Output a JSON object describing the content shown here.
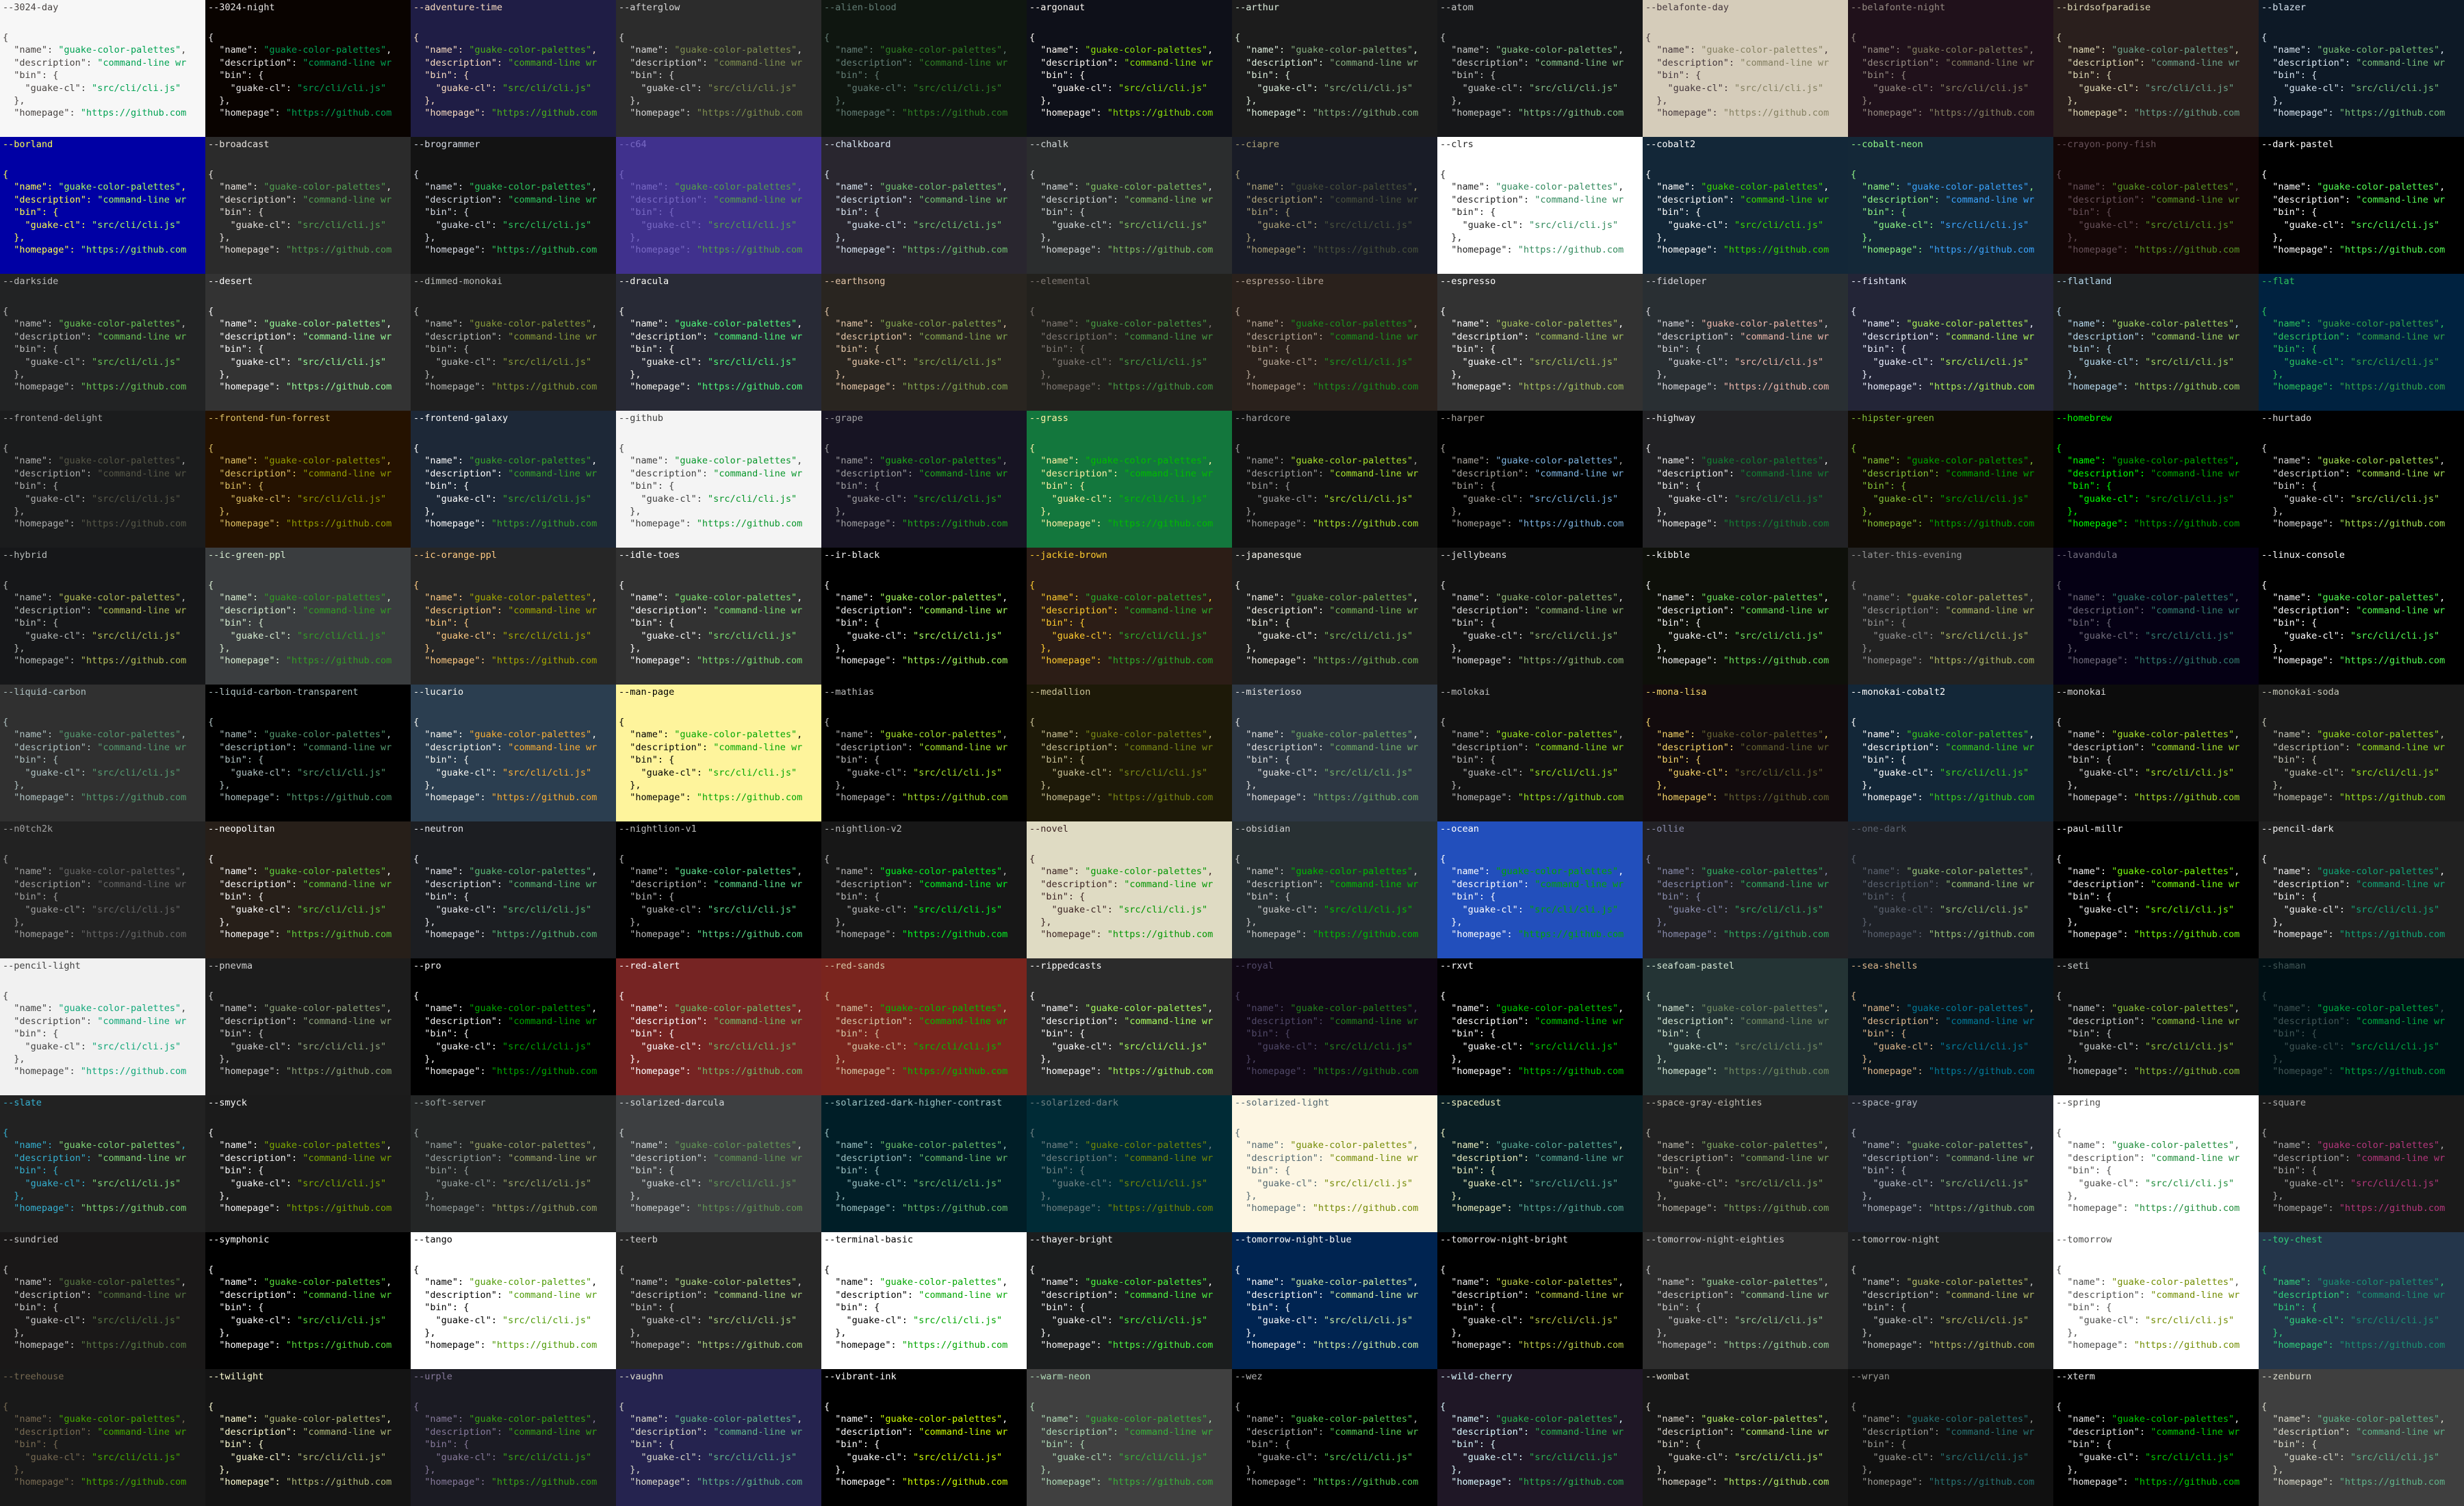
{
  "snippet": [
    [
      {
        "text": "{",
        "role": "fg"
      }
    ],
    [
      {
        "text": "\"name\"",
        "role": "fg"
      },
      {
        "text": ": ",
        "role": "fg"
      },
      {
        "text": "\"guake-color-palettes\"",
        "role": "str"
      },
      {
        "text": ",",
        "role": "fg"
      }
    ],
    [
      {
        "text": "\"description\"",
        "role": "fg"
      },
      {
        "text": ": ",
        "role": "fg"
      },
      {
        "text": "\"command-line wr",
        "role": "str"
      }
    ],
    [
      {
        "text": "\"bin\"",
        "role": "fg"
      },
      {
        "text": ": {",
        "role": "fg"
      }
    ],
    [
      {
        "text": "\"guake-cl\"",
        "role": "fg"
      },
      {
        "text": ": ",
        "role": "fg"
      },
      {
        "text": "\"src/cli/cli.js\"",
        "role": "str"
      }
    ],
    [
      {
        "text": "},",
        "role": "fg"
      }
    ],
    [
      {
        "text": "\"homepage\"",
        "role": "fg"
      },
      {
        "text": ": ",
        "role": "fg"
      },
      {
        "text": "\"https://github.com",
        "role": "str"
      }
    ]
  ],
  "themes": [
    {
      "name": "--3024-day",
      "bg": "#f7f7f7",
      "fg": "#4a4543",
      "str": "#01a252"
    },
    {
      "name": "--3024-night",
      "bg": "#090300",
      "fg": "#e8e6e5",
      "str": "#01a252"
    },
    {
      "name": "--adventure-time",
      "bg": "#1f1d45",
      "fg": "#f8dcc0",
      "str": "#4ab118"
    },
    {
      "name": "--afterglow",
      "bg": "#2c2c2c",
      "fg": "#d6d6d6",
      "str": "#7e8e50"
    },
    {
      "name": "--alien-blood",
      "bg": "#0f1610",
      "fg": "#637d75",
      "str": "#2f7e25"
    },
    {
      "name": "--argonaut",
      "bg": "#0e1019",
      "fg": "#fffaf4",
      "str": "#8ce10b"
    },
    {
      "name": "--arthur",
      "bg": "#1c1c1c",
      "fg": "#ddeedd",
      "str": "#86af80"
    },
    {
      "name": "--atom",
      "bg": "#161719",
      "fg": "#c5c8c6",
      "str": "#87c38a"
    },
    {
      "name": "--belafonte-day",
      "bg": "#d5ccba",
      "fg": "#45373c",
      "str": "#858162"
    },
    {
      "name": "--belafonte-night",
      "bg": "#20111b",
      "fg": "#968c83",
      "str": "#858162"
    },
    {
      "name": "--birdsofparadise",
      "bg": "#2a1f1d",
      "fg": "#e0dbb7",
      "str": "#6ba18a"
    },
    {
      "name": "--blazer",
      "bg": "#0d1926",
      "fg": "#d9e6f2",
      "str": "#7ac07a"
    },
    {
      "name": "--borland",
      "bg": "#0000a4",
      "fg": "#ffff4e",
      "str": "#a8ff60"
    },
    {
      "name": "--broadcast",
      "bg": "#2b2b2b",
      "fg": "#e6e1dc",
      "str": "#519f50"
    },
    {
      "name": "--brogrammer",
      "bg": "#131313",
      "fg": "#d6dbe5",
      "str": "#2dc55e"
    },
    {
      "name": "--c64",
      "bg": "#40318d",
      "fg": "#7869c4",
      "str": "#55a049"
    },
    {
      "name": "--chalkboard",
      "bg": "#29262f",
      "fg": "#d9e6f2",
      "str": "#72c373"
    },
    {
      "name": "--chalk",
      "bg": "#2b2d2e",
      "fg": "#d2d8d9",
      "str": "#80c064"
    },
    {
      "name": "--ciapre",
      "bg": "#191c27",
      "fg": "#aea47a",
      "str": "#48513b"
    },
    {
      "name": "--clrs",
      "bg": "#ffffff",
      "fg": "#262626",
      "str": "#328a5d"
    },
    {
      "name": "--cobalt2",
      "bg": "#132738",
      "fg": "#ffffff",
      "str": "#3ad900"
    },
    {
      "name": "--cobalt-neon",
      "bg": "#142838",
      "fg": "#8ff586",
      "str": "#3ba5ff"
    },
    {
      "name": "--crayon-pony-fish",
      "bg": "#150707",
      "fg": "#68525a",
      "str": "#579524"
    },
    {
      "name": "--dark-pastel",
      "bg": "#000000",
      "fg": "#ffffff",
      "str": "#55ff55"
    },
    {
      "name": "--darkside",
      "bg": "#222324",
      "fg": "#bababa",
      "str": "#68c256"
    },
    {
      "name": "--desert",
      "bg": "#333333",
      "fg": "#ffffff",
      "str": "#98fb98"
    },
    {
      "name": "--dimmed-monokai",
      "bg": "#1f1f1f",
      "fg": "#b9bcba",
      "str": "#879a3b"
    },
    {
      "name": "--dracula",
      "bg": "#282a36",
      "fg": "#f8f8f2",
      "str": "#50fa7b"
    },
    {
      "name": "--earthsong",
      "bg": "#292520",
      "fg": "#e5c7a9",
      "str": "#85a751"
    },
    {
      "name": "--elemental",
      "bg": "#22211d",
      "fg": "#807974",
      "str": "#479a43"
    },
    {
      "name": "--espresso-libre",
      "bg": "#2a211c",
      "fg": "#b8a898",
      "str": "#1a921c"
    },
    {
      "name": "--espresso",
      "bg": "#323232",
      "fg": "#ffffff",
      "str": "#a5c261"
    },
    {
      "name": "--fideloper",
      "bg": "#292f33",
      "fg": "#dbdae0",
      "str": "#edb8ac"
    },
    {
      "name": "--fishtank",
      "bg": "#232537",
      "fg": "#ecf0fe",
      "str": "#acf157"
    },
    {
      "name": "--flatland",
      "bg": "#1d1f21",
      "fg": "#b8dbef",
      "str": "#9fd364"
    },
    {
      "name": "--flat",
      "bg": "#002240",
      "fg": "#2cc55d",
      "str": "#32a548"
    },
    {
      "name": "--frontend-delight",
      "bg": "#1b1c1d",
      "fg": "#adadad",
      "str": "#565747"
    },
    {
      "name": "--frontend-fun-forrest",
      "bg": "#251200",
      "fg": "#dec165",
      "str": "#919c00"
    },
    {
      "name": "--frontend-galaxy",
      "bg": "#1d2837",
      "fg": "#ffffff",
      "str": "#38a52a"
    },
    {
      "name": "--github",
      "bg": "#f4f4f4",
      "fg": "#3e3e3e",
      "str": "#07962a"
    },
    {
      "name": "--grape",
      "bg": "#171423",
      "fg": "#9f9fa1",
      "str": "#1fa91b"
    },
    {
      "name": "--grass",
      "bg": "#13773d",
      "fg": "#fff0a5",
      "str": "#00bb00"
    },
    {
      "name": "--hardcore",
      "bg": "#121212",
      "fg": "#a0a0a0",
      "str": "#a6e22e"
    },
    {
      "name": "--harper",
      "bg": "#010101",
      "fg": "#a8a49d",
      "str": "#7fb5e1"
    },
    {
      "name": "--highway",
      "bg": "#222225",
      "fg": "#ededed",
      "str": "#138034"
    },
    {
      "name": "--hipster-green",
      "bg": "#100b05",
      "fg": "#84c138",
      "str": "#00a600"
    },
    {
      "name": "--homebrew",
      "bg": "#000000",
      "fg": "#00ff00",
      "str": "#00a600"
    },
    {
      "name": "--hurtado",
      "bg": "#000000",
      "fg": "#dbdbdb",
      "str": "#a5e055"
    },
    {
      "name": "--hybrid",
      "bg": "#161719",
      "fg": "#b7bcba",
      "str": "#b3bf5a"
    },
    {
      "name": "--ic-green-ppl",
      "bg": "#3a3d3f",
      "fg": "#d9efd3",
      "str": "#339c24"
    },
    {
      "name": "--ic-orange-ppl",
      "bg": "#262626",
      "fg": "#ffcb83",
      "str": "#a4a900"
    },
    {
      "name": "--idle-toes",
      "bg": "#323232",
      "fg": "#ffffff",
      "str": "#7fe173"
    },
    {
      "name": "--ir-black",
      "bg": "#000000",
      "fg": "#f1f1f1",
      "str": "#a8ff60"
    },
    {
      "name": "--jackie-brown",
      "bg": "#2c1d16",
      "fg": "#ffcc2f",
      "str": "#2baf2b"
    },
    {
      "name": "--japanesque",
      "bg": "#1e1e1e",
      "fg": "#f7f6ec",
      "str": "#7bb75b"
    },
    {
      "name": "--jellybeans",
      "bg": "#121212",
      "fg": "#dedede",
      "str": "#94b979"
    },
    {
      "name": "--kibble",
      "bg": "#0e100a",
      "fg": "#f7f7f7",
      "str": "#6ce05c"
    },
    {
      "name": "--later-this-evening",
      "bg": "#222222",
      "fg": "#959595",
      "str": "#afba67"
    },
    {
      "name": "--lavandula",
      "bg": "#050014",
      "fg": "#736e7d",
      "str": "#337e6f"
    },
    {
      "name": "--linux-console",
      "bg": "#000000",
      "fg": "#ffffff",
      "str": "#54ff54"
    },
    {
      "name": "--liquid-carbon",
      "bg": "#303030",
      "fg": "#afc2c2",
      "str": "#559a70"
    },
    {
      "name": "--liquid-carbon-transparent",
      "bg": "#000000",
      "fg": "#afc2c2",
      "str": "#559a70"
    },
    {
      "name": "--lucario",
      "bg": "#2b3e50",
      "fg": "#f8f8f2",
      "str": "#fbb036"
    },
    {
      "name": "--man-page",
      "bg": "#fef49c",
      "fg": "#000000",
      "str": "#00a600"
    },
    {
      "name": "--mathias",
      "bg": "#000000",
      "fg": "#bbbbbb",
      "str": "#a6e32d"
    },
    {
      "name": "--medallion",
      "bg": "#1d1908",
      "fg": "#cac296",
      "str": "#7c8b16"
    },
    {
      "name": "--misterioso",
      "bg": "#2d3743",
      "fg": "#e1e1e0",
      "str": "#74af68"
    },
    {
      "name": "--molokai",
      "bg": "#121212",
      "fg": "#bbbbbb",
      "str": "#98e123"
    },
    {
      "name": "--mona-lisa",
      "bg": "#120b0d",
      "fg": "#f7d66a",
      "str": "#636232"
    },
    {
      "name": "--monokai-cobalt2",
      "bg": "#132738",
      "fg": "#ffffff",
      "str": "#3bd01d"
    },
    {
      "name": "--monokai",
      "bg": "#0c0c0c",
      "fg": "#d9d9d9",
      "str": "#a6e22e"
    },
    {
      "name": "--monokai-soda",
      "bg": "#1a1a1a",
      "fg": "#c4c5b5",
      "str": "#98e024"
    },
    {
      "name": "--n0tch2k",
      "bg": "#222222",
      "fg": "#a0a0a0",
      "str": "#666666"
    },
    {
      "name": "--neopolitan",
      "bg": "#271f19",
      "fg": "#ffffff",
      "str": "#61ce3c"
    },
    {
      "name": "--neutron",
      "bg": "#1c1e22",
      "fg": "#e6e8ef",
      "str": "#5ab977"
    },
    {
      "name": "--nightlion-v1",
      "bg": "#000000",
      "fg": "#bbbbbb",
      "str": "#5fde8f"
    },
    {
      "name": "--nightlion-v2",
      "bg": "#171717",
      "fg": "#bbbbbb",
      "str": "#04f623"
    },
    {
      "name": "--novel",
      "bg": "#dfdbc3",
      "fg": "#3b2322",
      "str": "#009600"
    },
    {
      "name": "--obsidian",
      "bg": "#283033",
      "fg": "#cdcdcd",
      "str": "#00bb00"
    },
    {
      "name": "--ocean",
      "bg": "#224fbc",
      "fg": "#ffffff",
      "str": "#00a600"
    },
    {
      "name": "--ollie",
      "bg": "#222125",
      "fg": "#8a8dae",
      "str": "#31ac61"
    },
    {
      "name": "--one-dark",
      "bg": "#1e2127",
      "fg": "#5c6370",
      "str": "#98c379"
    },
    {
      "name": "--paul-millr",
      "bg": "#000000",
      "fg": "#f2f2f2",
      "str": "#79ff0f"
    },
    {
      "name": "--pencil-dark",
      "bg": "#212121",
      "fg": "#f1f1f1",
      "str": "#10a778"
    },
    {
      "name": "--pencil-light",
      "bg": "#f1f1f1",
      "fg": "#424242",
      "str": "#10a778"
    },
    {
      "name": "--pnevma",
      "bg": "#1c1c1c",
      "fg": "#d0d0d0",
      "str": "#90a57d"
    },
    {
      "name": "--pro",
      "bg": "#000000",
      "fg": "#f2f2f2",
      "str": "#00a600"
    },
    {
      "name": "--red-alert",
      "bg": "#762423",
      "fg": "#ffffff",
      "str": "#71be6b"
    },
    {
      "name": "--red-sands",
      "bg": "#7a251e",
      "fg": "#d7c9a7",
      "str": "#00bb00"
    },
    {
      "name": "--rippedcasts",
      "bg": "#2b2b2b",
      "fg": "#ffffff",
      "str": "#a8ff60"
    },
    {
      "name": "--royal",
      "bg": "#100815",
      "fg": "#514968",
      "str": "#23801c"
    },
    {
      "name": "--rxvt",
      "bg": "#000000",
      "fg": "#ffffff",
      "str": "#00cd00"
    },
    {
      "name": "--seafoam-pastel",
      "bg": "#243435",
      "fg": "#d4e7d4",
      "str": "#728c62"
    },
    {
      "name": "--sea-shells",
      "bg": "#09141b",
      "fg": "#deb88d",
      "str": "#027c9b"
    },
    {
      "name": "--seti",
      "bg": "#111213",
      "fg": "#cacecd",
      "str": "#8ec43d"
    },
    {
      "name": "--shaman",
      "bg": "#001015",
      "fg": "#405555",
      "str": "#00a941"
    },
    {
      "name": "--slate",
      "bg": "#222222",
      "fg": "#35b1d2",
      "str": "#81d778"
    },
    {
      "name": "--smyck",
      "bg": "#1b1b1b",
      "fg": "#f8f8f8",
      "str": "#7da900"
    },
    {
      "name": "--soft-server",
      "bg": "#242626",
      "fg": "#99a3a2",
      "str": "#9aa56a"
    },
    {
      "name": "--solarized-darcula",
      "bg": "#3d3f41",
      "fg": "#d2d8d9",
      "str": "#629655"
    },
    {
      "name": "--solarized-dark-higher-contrast",
      "bg": "#001e27",
      "fg": "#9cc2c3",
      "str": "#6cbe6c"
    },
    {
      "name": "--solarized-dark",
      "bg": "#002b36",
      "fg": "#708284",
      "str": "#738a05"
    },
    {
      "name": "--solarized-light",
      "bg": "#fdf6e3",
      "fg": "#536870",
      "str": "#738a05"
    },
    {
      "name": "--spacedust",
      "bg": "#0a1e24",
      "fg": "#ecf0c1",
      "str": "#5cab96"
    },
    {
      "name": "--space-gray-eighties",
      "bg": "#222222",
      "fg": "#bdbaae",
      "str": "#81a764"
    },
    {
      "name": "--space-gray",
      "bg": "#20242d",
      "fg": "#b3b8c3",
      "str": "#87b379"
    },
    {
      "name": "--spring",
      "bg": "#ffffff",
      "fg": "#4d4d4c",
      "str": "#1f8c3b"
    },
    {
      "name": "--square",
      "bg": "#1a1a1a",
      "fg": "#acacab",
      "str": "#b6377d"
    },
    {
      "name": "--sundried",
      "bg": "#1a1818",
      "fg": "#c9c9c9",
      "str": "#587744"
    },
    {
      "name": "--symphonic",
      "bg": "#000000",
      "fg": "#ffffff",
      "str": "#56db3a"
    },
    {
      "name": "--tango",
      "bg": "#ffffff",
      "fg": "#000000",
      "str": "#4e9a06"
    },
    {
      "name": "--teerb",
      "bg": "#262626",
      "fg": "#d0d0d0",
      "str": "#aed686"
    },
    {
      "name": "--terminal-basic",
      "bg": "#ffffff",
      "fg": "#000000",
      "str": "#00a600"
    },
    {
      "name": "--thayer-bright",
      "bg": "#1b1d1e",
      "fg": "#f8f8f8",
      "str": "#4df840"
    },
    {
      "name": "--tomorrow-night-blue",
      "bg": "#002451",
      "fg": "#ffffff",
      "str": "#d1f1a9"
    },
    {
      "name": "--tomorrow-night-bright",
      "bg": "#000000",
      "fg": "#eaeaea",
      "str": "#b9ca4a"
    },
    {
      "name": "--tomorrow-night-eighties",
      "bg": "#2d2d2d",
      "fg": "#cccccc",
      "str": "#99cc99"
    },
    {
      "name": "--tomorrow-night",
      "bg": "#1d1f21",
      "fg": "#c5c8c6",
      "str": "#b5bd68"
    },
    {
      "name": "--tomorrow",
      "bg": "#ffffff",
      "fg": "#4d4d4c",
      "str": "#718c00"
    },
    {
      "name": "--toy-chest",
      "bg": "#24364b",
      "fg": "#31d07b",
      "str": "#1a9172"
    },
    {
      "name": "--treehouse",
      "bg": "#191919",
      "fg": "#786b53",
      "str": "#44a900"
    },
    {
      "name": "--twilight",
      "bg": "#141414",
      "fg": "#ffffd4",
      "str": "#afb97a"
    },
    {
      "name": "--urple",
      "bg": "#1b1b23",
      "fg": "#877a9b",
      "str": "#37a415"
    },
    {
      "name": "--vaughn",
      "bg": "#25234f",
      "fg": "#dcdccc",
      "str": "#60b48a"
    },
    {
      "name": "--vibrant-ink",
      "bg": "#000000",
      "fg": "#ffffff",
      "str": "#ccff04"
    },
    {
      "name": "--warm-neon",
      "bg": "#404040",
      "fg": "#afdab6",
      "str": "#39b13a"
    },
    {
      "name": "--wez",
      "bg": "#000000",
      "fg": "#b3b3b3",
      "str": "#55cc55"
    },
    {
      "name": "--wild-cherry",
      "bg": "#1f1726",
      "fg": "#dafaff",
      "str": "#2ab250"
    },
    {
      "name": "--wombat",
      "bg": "#171717",
      "fg": "#dedacf",
      "str": "#b1e969"
    },
    {
      "name": "--wryan",
      "bg": "#101010",
      "fg": "#999993",
      "str": "#287373"
    },
    {
      "name": "--xterm",
      "bg": "#000000",
      "fg": "#e5e5e5",
      "str": "#00cd00"
    },
    {
      "name": "--zenburn",
      "bg": "#3f3f3f",
      "fg": "#dcdccc",
      "str": "#60b48a"
    }
  ]
}
